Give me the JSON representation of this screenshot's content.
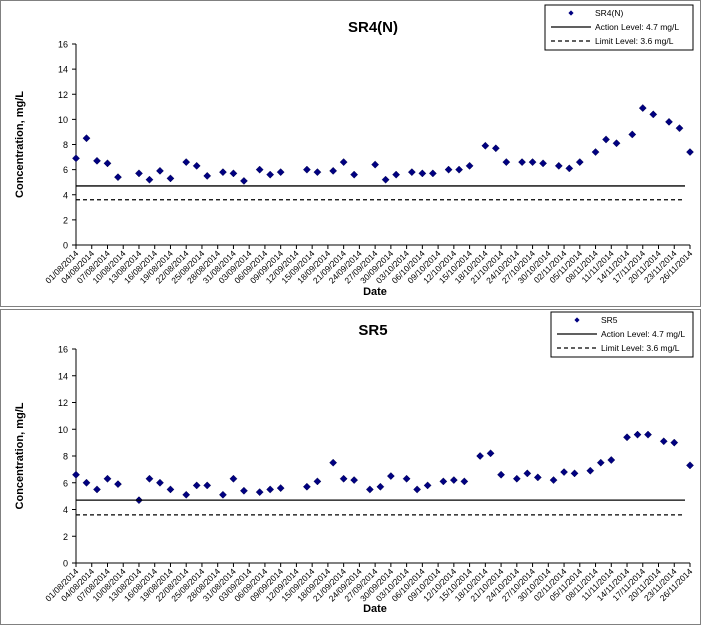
{
  "chart_data": [
    {
      "type": "scatter",
      "title": "SR4(N)",
      "xlabel": "Date",
      "ylabel": "Concentration, mg/L",
      "ylim": [
        0,
        16
      ],
      "yticks": [
        0,
        2,
        4,
        6,
        8,
        10,
        12,
        14,
        16
      ],
      "grid": false,
      "legend_position": "top-right",
      "xticks": [
        "01/08/2014",
        "04/08/2014",
        "07/08/2014",
        "10/08/2014",
        "13/08/2014",
        "16/08/2014",
        "19/08/2014",
        "22/08/2014",
        "25/08/2014",
        "28/08/2014",
        "31/08/2014",
        "03/09/2014",
        "06/09/2014",
        "09/09/2014",
        "12/09/2014",
        "15/09/2014",
        "18/09/2014",
        "21/09/2014",
        "24/09/2014",
        "27/09/2014",
        "30/09/2014",
        "03/10/2014",
        "06/10/2014",
        "09/10/2014",
        "12/10/2014",
        "15/10/2014",
        "18/10/2014",
        "21/10/2014",
        "24/10/2014",
        "27/10/2014",
        "30/10/2014",
        "02/11/2014",
        "05/11/2014",
        "08/11/2014",
        "11/11/2014",
        "14/11/2014",
        "17/11/2014",
        "20/11/2014",
        "23/11/2014",
        "26/11/2014"
      ],
      "series": [
        {
          "name": "SR4(N)",
          "color": "#000080",
          "points": [
            [
              "01/08/2014",
              6.9
            ],
            [
              "03/08/2014",
              8.5
            ],
            [
              "05/08/2014",
              6.7
            ],
            [
              "07/08/2014",
              6.5
            ],
            [
              "09/08/2014",
              5.4
            ],
            [
              "13/08/2014",
              5.7
            ],
            [
              "15/08/2014",
              5.2
            ],
            [
              "17/08/2014",
              5.9
            ],
            [
              "19/08/2014",
              5.3
            ],
            [
              "22/08/2014",
              6.6
            ],
            [
              "24/08/2014",
              6.3
            ],
            [
              "26/08/2014",
              5.5
            ],
            [
              "29/08/2014",
              5.8
            ],
            [
              "31/08/2014",
              5.7
            ],
            [
              "02/09/2014",
              5.1
            ],
            [
              "05/09/2014",
              6.0
            ],
            [
              "07/09/2014",
              5.6
            ],
            [
              "09/09/2014",
              5.8
            ],
            [
              "14/09/2014",
              6.0
            ],
            [
              "16/09/2014",
              5.8
            ],
            [
              "19/09/2014",
              5.9
            ],
            [
              "21/09/2014",
              6.6
            ],
            [
              "23/09/2014",
              5.6
            ],
            [
              "27/09/2014",
              6.4
            ],
            [
              "29/09/2014",
              5.2
            ],
            [
              "01/10/2014",
              5.6
            ],
            [
              "04/10/2014",
              5.8
            ],
            [
              "06/10/2014",
              5.7
            ],
            [
              "08/10/2014",
              5.7
            ],
            [
              "11/10/2014",
              6.0
            ],
            [
              "13/10/2014",
              6.0
            ],
            [
              "15/10/2014",
              6.3
            ],
            [
              "18/10/2014",
              7.9
            ],
            [
              "20/10/2014",
              7.7
            ],
            [
              "22/10/2014",
              6.6
            ],
            [
              "25/10/2014",
              6.6
            ],
            [
              "27/10/2014",
              6.6
            ],
            [
              "29/10/2014",
              6.5
            ],
            [
              "01/11/2014",
              6.3
            ],
            [
              "03/11/2014",
              6.1
            ],
            [
              "05/11/2014",
              6.6
            ],
            [
              "08/11/2014",
              7.4
            ],
            [
              "10/11/2014",
              8.4
            ],
            [
              "12/11/2014",
              8.1
            ],
            [
              "15/11/2014",
              8.8
            ],
            [
              "17/11/2014",
              10.9
            ],
            [
              "19/11/2014",
              10.4
            ],
            [
              "22/11/2014",
              9.8
            ],
            [
              "24/11/2014",
              9.3
            ],
            [
              "26/11/2014",
              7.4
            ]
          ]
        },
        {
          "name": "Action Level: 4.7 mg/L",
          "type": "hline",
          "value": 4.7,
          "style": "solid"
        },
        {
          "name": "Limit Level: 3.6 mg/L",
          "type": "hline",
          "value": 3.6,
          "style": "dashed"
        }
      ]
    },
    {
      "type": "scatter",
      "title": "SR5",
      "xlabel": "Date",
      "ylabel": "Concentration, mg/L",
      "ylim": [
        0,
        16
      ],
      "yticks": [
        0,
        2,
        4,
        6,
        8,
        10,
        12,
        14,
        16
      ],
      "grid": false,
      "legend_position": "top-right",
      "xticks": [
        "01/08/2014",
        "04/08/2014",
        "07/08/2014",
        "10/08/2014",
        "13/08/2014",
        "16/08/2014",
        "19/08/2014",
        "22/08/2014",
        "25/08/2014",
        "28/08/2014",
        "31/08/2014",
        "03/09/2014",
        "06/09/2014",
        "09/09/2014",
        "12/09/2014",
        "15/09/2014",
        "18/09/2014",
        "21/09/2014",
        "24/09/2014",
        "27/09/2014",
        "30/09/2014",
        "03/10/2014",
        "06/10/2014",
        "09/10/2014",
        "12/10/2014",
        "15/10/2014",
        "18/10/2014",
        "21/10/2014",
        "24/10/2014",
        "27/10/2014",
        "30/10/2014",
        "02/11/2014",
        "05/11/2014",
        "08/11/2014",
        "11/11/2014",
        "14/11/2014",
        "17/11/2014",
        "20/11/2014",
        "23/11/2014",
        "26/11/2014"
      ],
      "series": [
        {
          "name": "SR5",
          "color": "#000080",
          "points": [
            [
              "01/08/2014",
              6.6
            ],
            [
              "03/08/2014",
              6.0
            ],
            [
              "05/08/2014",
              5.5
            ],
            [
              "07/08/2014",
              6.3
            ],
            [
              "09/08/2014",
              5.9
            ],
            [
              "13/08/2014",
              4.7
            ],
            [
              "15/08/2014",
              6.3
            ],
            [
              "17/08/2014",
              6.0
            ],
            [
              "19/08/2014",
              5.5
            ],
            [
              "22/08/2014",
              5.1
            ],
            [
              "24/08/2014",
              5.8
            ],
            [
              "26/08/2014",
              5.8
            ],
            [
              "29/08/2014",
              5.1
            ],
            [
              "31/08/2014",
              6.3
            ],
            [
              "02/09/2014",
              5.4
            ],
            [
              "05/09/2014",
              5.3
            ],
            [
              "07/09/2014",
              5.5
            ],
            [
              "09/09/2014",
              5.6
            ],
            [
              "14/09/2014",
              5.7
            ],
            [
              "16/09/2014",
              6.1
            ],
            [
              "19/09/2014",
              7.5
            ],
            [
              "21/09/2014",
              6.3
            ],
            [
              "23/09/2014",
              6.2
            ],
            [
              "26/09/2014",
              5.5
            ],
            [
              "28/09/2014",
              5.7
            ],
            [
              "30/09/2014",
              6.5
            ],
            [
              "03/10/2014",
              6.3
            ],
            [
              "05/10/2014",
              5.5
            ],
            [
              "07/10/2014",
              5.8
            ],
            [
              "10/10/2014",
              6.1
            ],
            [
              "12/10/2014",
              6.2
            ],
            [
              "14/10/2014",
              6.1
            ],
            [
              "17/10/2014",
              8.0
            ],
            [
              "19/10/2014",
              8.2
            ],
            [
              "21/10/2014",
              6.6
            ],
            [
              "24/10/2014",
              6.3
            ],
            [
              "26/10/2014",
              6.7
            ],
            [
              "28/10/2014",
              6.4
            ],
            [
              "31/10/2014",
              6.2
            ],
            [
              "02/11/2014",
              6.8
            ],
            [
              "04/11/2014",
              6.7
            ],
            [
              "07/11/2014",
              6.9
            ],
            [
              "09/11/2014",
              7.5
            ],
            [
              "11/11/2014",
              7.7
            ],
            [
              "14/11/2014",
              9.4
            ],
            [
              "16/11/2014",
              9.6
            ],
            [
              "18/11/2014",
              9.6
            ],
            [
              "21/11/2014",
              9.1
            ],
            [
              "23/11/2014",
              9.0
            ],
            [
              "26/11/2014",
              7.3
            ]
          ]
        },
        {
          "name": "Action Level: 4.7 mg/L",
          "type": "hline",
          "value": 4.7,
          "style": "solid"
        },
        {
          "name": "Limit Level: 3.6 mg/L",
          "type": "hline",
          "value": 3.6,
          "style": "dashed"
        }
      ]
    }
  ]
}
